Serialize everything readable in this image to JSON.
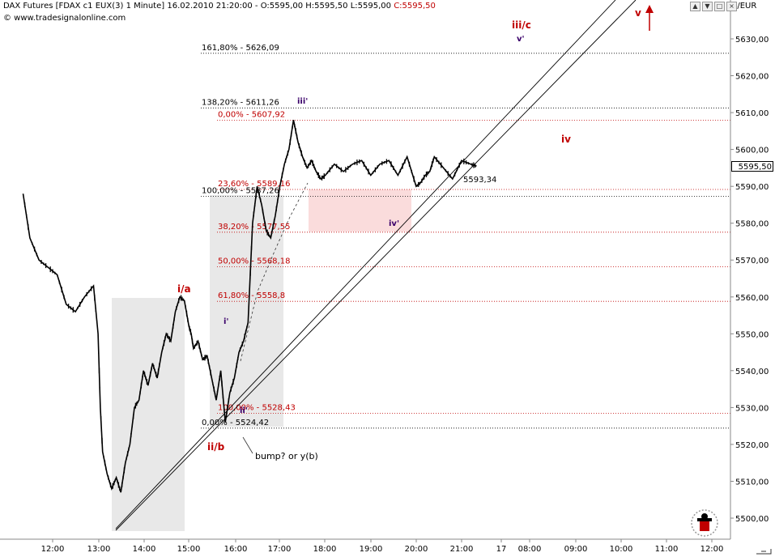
{
  "header": {
    "instrument": "DAX Futures [FDAX c1 EUX(3)",
    "interval": "1 Minute]",
    "datetime": "16.02.2010 21:20:00",
    "ohlc_prefix": "- O:5595,00 H:5595,50 L:5595,00",
    "close": "C:5595,50",
    "copyright": "© www.tradesignalonline.com",
    "currency": "€/EUR"
  },
  "current_price": "5595,50",
  "colors": {
    "price": "#000000",
    "fib_red": "#c00000",
    "fib_black": "#000000",
    "wave_red": "#c00000",
    "wave_purple": "#3a006a",
    "box_grey": "#e8e8e8",
    "box_pink": "#fadcdc"
  },
  "chart_data": {
    "type": "line",
    "title": "DAX Futures [FDAX c1 EUX(3) 1 Minute]",
    "y_axis": {
      "range": [
        5495,
        5639
      ],
      "ticks": [
        "5630,00",
        "5620,00",
        "5610,00",
        "5600,00",
        "5590,00",
        "5580,00",
        "5570,00",
        "5560,00",
        "5550,00",
        "5540,00",
        "5530,00",
        "5520,00",
        "5510,00",
        "5500,00"
      ]
    },
    "x_axis": {
      "ticks": [
        "12:00",
        "13:00",
        "14:00",
        "15:00",
        "16:00",
        "17:00",
        "18:00",
        "19:00",
        "20:00",
        "21:00",
        "17",
        "08:00",
        "09:00",
        "10:00",
        "11:00",
        "12:00"
      ]
    },
    "series": [
      {
        "x": [
          11.35,
          11.5,
          11.7,
          11.9,
          12.1,
          12.3,
          12.5,
          12.7,
          12.9,
          13.0,
          13.05,
          13.1,
          13.2,
          13.3,
          13.4,
          13.5,
          13.6,
          13.7,
          13.8,
          13.9,
          14.0,
          14.1,
          14.2,
          14.3,
          14.4,
          14.5,
          14.6,
          14.7,
          14.8,
          14.9,
          15.0,
          15.05,
          15.1,
          15.2,
          15.3,
          15.4,
          15.5,
          15.6,
          15.7,
          15.8,
          15.9,
          16.0,
          16.1,
          16.2,
          16.3,
          16.4,
          16.5,
          16.6,
          16.7,
          16.8,
          16.9,
          17.0,
          17.1,
          17.2,
          17.3,
          17.4,
          17.5,
          17.6,
          17.7,
          17.8,
          17.9,
          18.0,
          18.2,
          18.4,
          18.6,
          18.8,
          19.0,
          19.2,
          19.4,
          19.6,
          19.8,
          20.0,
          20.1,
          20.2,
          20.3,
          20.4,
          20.6,
          20.8,
          21.0,
          21.2,
          21.33
        ],
        "values": [
          5588,
          5576,
          5570,
          5568,
          5566,
          5558,
          5556,
          5560,
          5563,
          5550,
          5530,
          5518,
          5512,
          5508,
          5511,
          5507,
          5515,
          5520,
          5530,
          5532,
          5540,
          5536,
          5542,
          5538,
          5545,
          5550,
          5548,
          5556,
          5560,
          5559,
          5552,
          5550,
          5546,
          5548,
          5543,
          5544,
          5538,
          5532,
          5540,
          5526,
          5534,
          5538,
          5545,
          5548,
          5553,
          5580,
          5590,
          5585,
          5578,
          5576,
          5582,
          5590,
          5596,
          5600,
          5608,
          5602,
          5598,
          5595,
          5597,
          5594,
          5592,
          5593,
          5596,
          5594,
          5596,
          5597,
          5593,
          5596,
          5597,
          5593,
          5598,
          5590,
          5591,
          5593,
          5594,
          5598,
          5595,
          5592,
          5597,
          5596,
          5595.5
        ]
      }
    ],
    "fib_levels": [
      {
        "label": "161,80% - 5626,09",
        "value": 5626.09,
        "color": "black"
      },
      {
        "label": "138,20% - 5611,26",
        "value": 5611.26,
        "color": "black"
      },
      {
        "label": "0,00% - 5607,92",
        "value": 5607.92,
        "color": "red"
      },
      {
        "label": "23,60% - 5589,16",
        "value": 5589.16,
        "color": "red"
      },
      {
        "label": "100,00% - 5587,26",
        "value": 5587.26,
        "color": "black"
      },
      {
        "label": "38,20% - 5577,55",
        "value": 5577.55,
        "color": "red"
      },
      {
        "label": "50,00% - 5568,18",
        "value": 5568.18,
        "color": "red"
      },
      {
        "label": "61,80% - 5558,8",
        "value": 5558.8,
        "color": "red"
      },
      {
        "label": "100,00% - 5528,43",
        "value": 5528.43,
        "color": "red"
      },
      {
        "label": "0,00% - 5524,42",
        "value": 5524.42,
        "color": "black"
      }
    ],
    "annotations": [
      {
        "text": "i/a",
        "color": "red"
      },
      {
        "text": "ii/b",
        "color": "red"
      },
      {
        "text": "iii/c",
        "color": "red"
      },
      {
        "text": "iv",
        "color": "red"
      },
      {
        "text": "v",
        "color": "red"
      },
      {
        "text": "i'",
        "color": "purple"
      },
      {
        "text": "ii'",
        "color": "purple"
      },
      {
        "text": "iii'",
        "color": "purple"
      },
      {
        "text": "iv'",
        "color": "purple"
      },
      {
        "text": "v'",
        "color": "purple"
      },
      {
        "text": "bump? or y(b)",
        "color": "black"
      },
      {
        "text": "5593,34",
        "color": "black"
      }
    ],
    "grid": false,
    "legend": "none"
  }
}
